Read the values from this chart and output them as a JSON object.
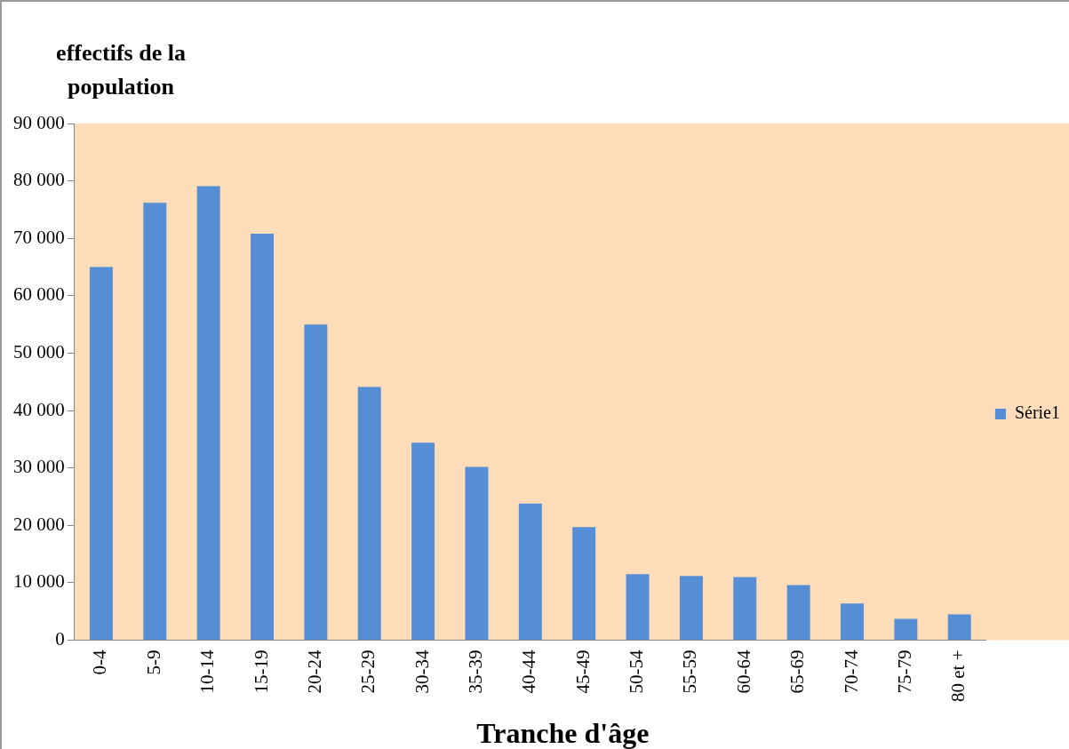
{
  "chart_data": {
    "type": "bar",
    "ylabel": "effectifs de la population",
    "xlabel": "Tranche d'âge",
    "categories": [
      "0-4",
      "5-9",
      "10-14",
      "15-19",
      "20-24",
      "25-29",
      "30-34",
      "35-39",
      "40-44",
      "45-49",
      "50-54",
      "55-59",
      "60-64",
      "65-69",
      "70-74",
      "75-79",
      "80 et +"
    ],
    "series": [
      {
        "name": "Série1",
        "color": "#558ed5",
        "values": [
          65000,
          76200,
          79100,
          70800,
          55000,
          44100,
          34400,
          30200,
          23800,
          19700,
          11500,
          11200,
          11000,
          9600,
          6400,
          3700,
          4500
        ]
      }
    ],
    "ylim": [
      0,
      90000
    ],
    "yticks": [
      {
        "value": 0,
        "label": "0"
      },
      {
        "value": 10000,
        "label": "10 000"
      },
      {
        "value": 20000,
        "label": "20 000"
      },
      {
        "value": 30000,
        "label": "30 000"
      },
      {
        "value": 40000,
        "label": "40 000"
      },
      {
        "value": 50000,
        "label": "50 000"
      },
      {
        "value": 60000,
        "label": "60 000"
      },
      {
        "value": 70000,
        "label": "70 000"
      },
      {
        "value": 80000,
        "label": "80 000"
      },
      {
        "value": 90000,
        "label": "90 000"
      }
    ],
    "grid": false,
    "legend": "right"
  }
}
